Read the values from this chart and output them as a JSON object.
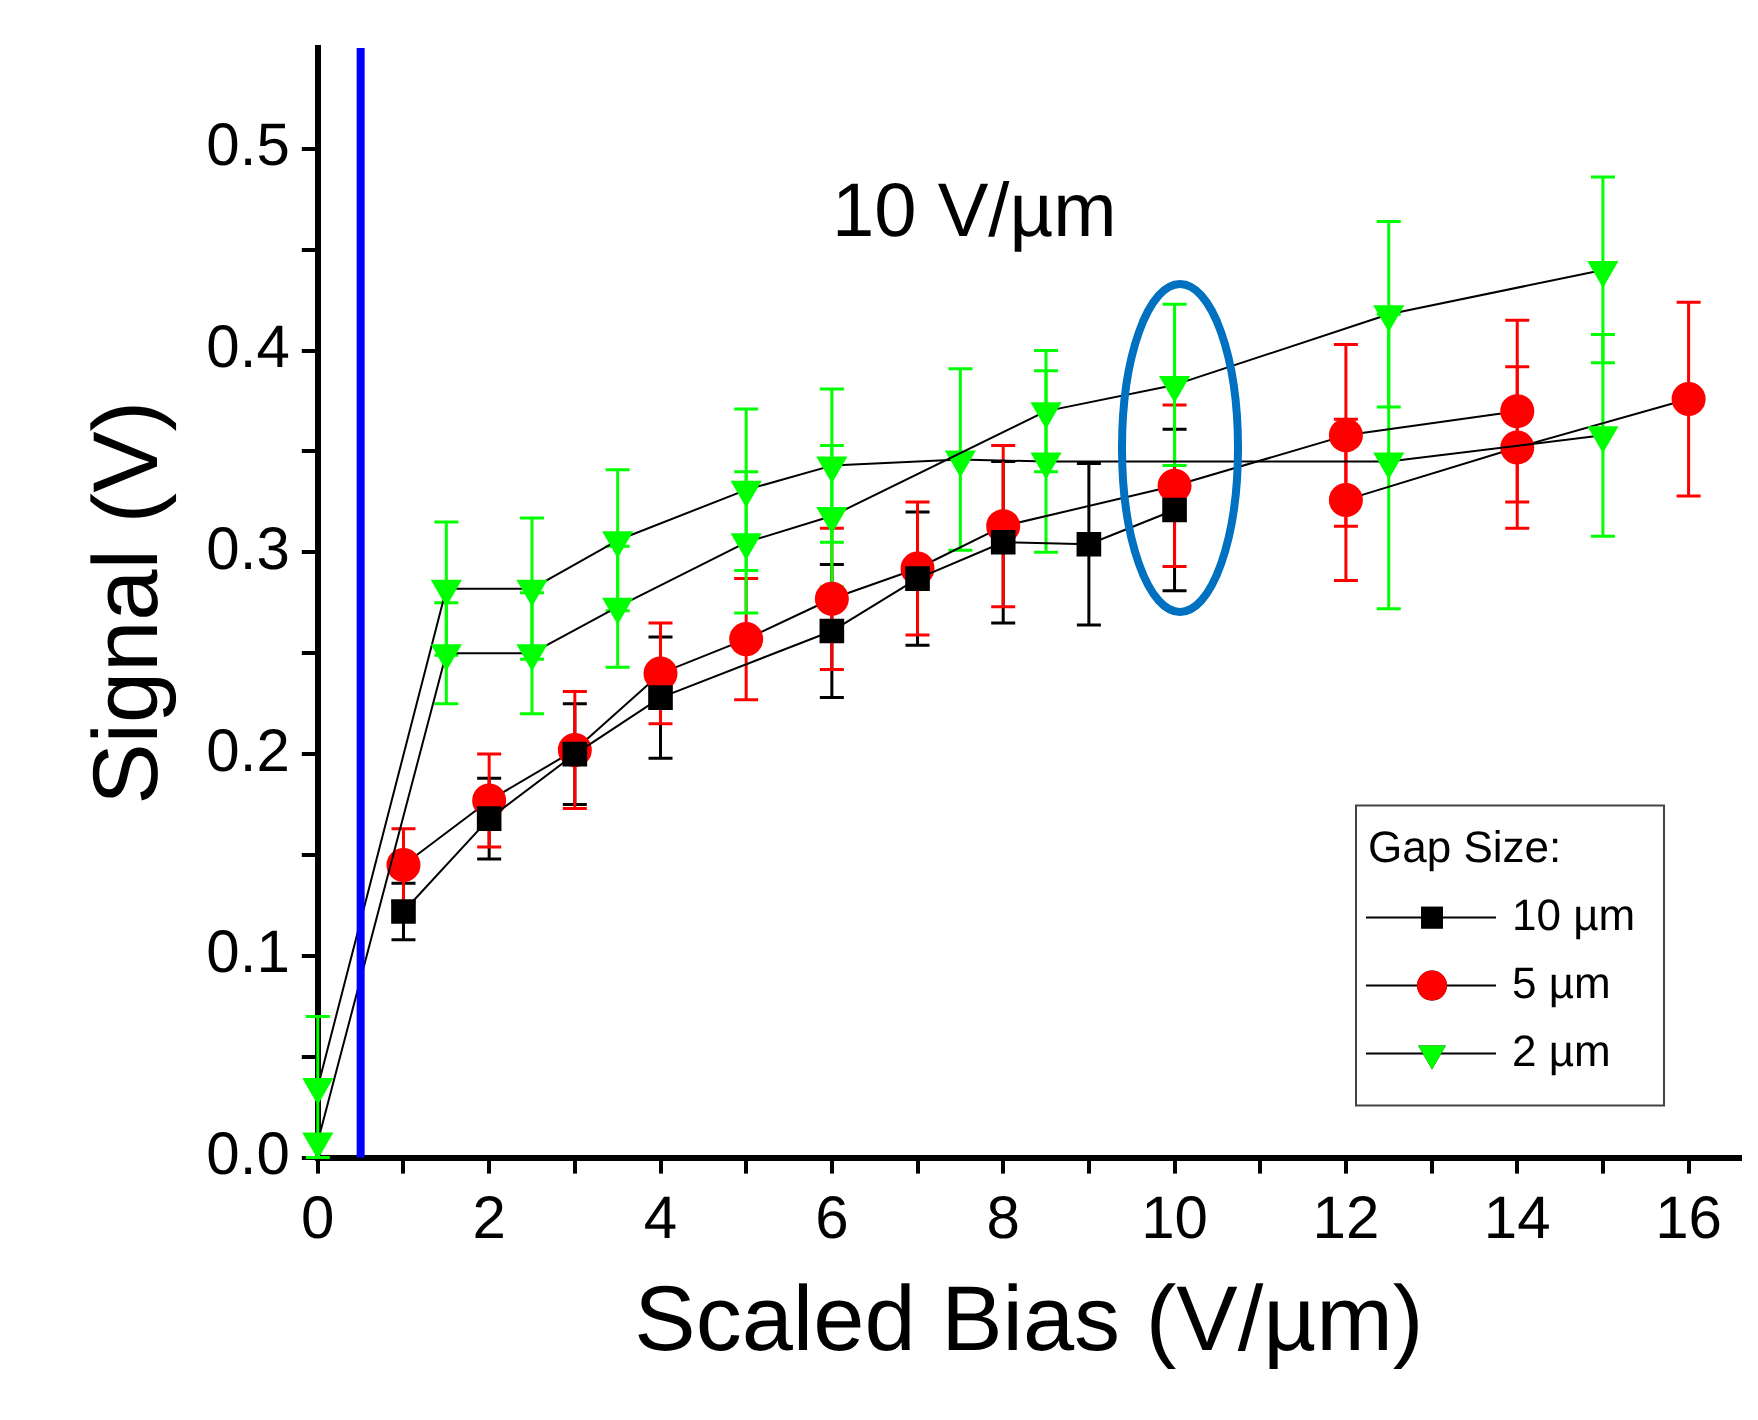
{
  "chart_data": {
    "type": "line",
    "xlabel": "Scaled Bias (V/µm)",
    "ylabel": "Signal (V)",
    "xlim": [
      0,
      16.6
    ],
    "ylim": [
      0,
      0.55
    ],
    "xticks": [
      0,
      {
        "value": 1,
        "label": null
      },
      2,
      {
        "value": 3,
        "label": null
      },
      4,
      {
        "value": 5,
        "label": null
      },
      6,
      {
        "value": 7,
        "label": null
      },
      8,
      {
        "value": 9,
        "label": null
      },
      10,
      {
        "value": 11,
        "label": null
      },
      12,
      {
        "value": 13,
        "label": null
      },
      14,
      {
        "value": 15,
        "label": null
      },
      16
    ],
    "yticks": [
      {
        "value": 0,
        "label": "0.0"
      },
      {
        "value": 0.05,
        "label": null
      },
      0.1,
      {
        "value": 0.15,
        "label": null
      },
      0.2,
      {
        "value": 0.25,
        "label": null
      },
      0.3,
      {
        "value": 0.35,
        "label": null
      },
      0.4,
      {
        "value": 0.45,
        "label": null
      },
      0.5
    ],
    "legend": "bottom right",
    "legend_title": "Gap Size:",
    "annotations": [
      "10 V/µm"
    ],
    "ref_lines": [
      {
        "axis": "x",
        "value": 0.5,
        "color": "#0000ff"
      }
    ],
    "series": [
      {
        "name": "10 µm",
        "color": "#000000",
        "marker": "square",
        "x": [
          1,
          2,
          3,
          4,
          6,
          7,
          8,
          9,
          10
        ],
        "values": [
          0.122,
          0.168,
          0.2,
          0.228,
          0.261,
          0.287,
          0.305,
          0.304,
          0.321
        ],
        "errors": [
          0.014,
          0.02,
          0.025,
          0.03,
          0.033,
          0.033,
          0.04,
          0.04,
          0.04
        ]
      },
      {
        "name": "5 µm",
        "color": "#ff0000",
        "marker": "circle",
        "x": [
          1,
          2,
          3,
          4,
          5,
          6,
          7,
          8,
          10,
          12,
          14
        ],
        "values": [
          0.145,
          0.177,
          0.202,
          0.24,
          0.257,
          0.277,
          0.292,
          0.313,
          0.333,
          0.358,
          0.37
        ],
        "errors": [
          0.018,
          0.023,
          0.029,
          0.025,
          0.03,
          0.035,
          0.033,
          0.04,
          0.04,
          0.045,
          0.045
        ]
      },
      {
        "color": "#ff0000",
        "marker": "circle",
        "x": [
          12,
          14,
          16
        ],
        "values": [
          0.326,
          0.352,
          0.376
        ],
        "errors": [
          0.04,
          0.04,
          0.048
        ]
      },
      {
        "name": "2 µm",
        "color": "#00ff00",
        "marker": "triangle",
        "x": [
          0,
          1.5,
          2.5,
          3.5,
          5,
          6,
          7.5,
          8.5,
          12.5,
          15
        ],
        "values": [
          0.035,
          0.282,
          0.282,
          0.306,
          0.331,
          0.343,
          0.346,
          0.345,
          0.345,
          0.358
        ],
        "errors": [
          0.035,
          0.033,
          0.035,
          0.035,
          0.04,
          0.038,
          0.045,
          0.045,
          0.073,
          0.05
        ]
      },
      {
        "color": "#00ff00",
        "marker": "triangle",
        "x": [
          0,
          1.5,
          2.5,
          3.5,
          5,
          6,
          8.5,
          10,
          12.5,
          15
        ],
        "values": [
          0.008,
          0.25,
          0.25,
          0.273,
          0.305,
          0.318,
          0.37,
          0.383,
          0.418,
          0.44
        ],
        "errors": [
          null,
          0.025,
          0.03,
          0.03,
          0.035,
          0.035,
          0.03,
          0.04,
          0.046,
          0.046
        ]
      }
    ]
  }
}
